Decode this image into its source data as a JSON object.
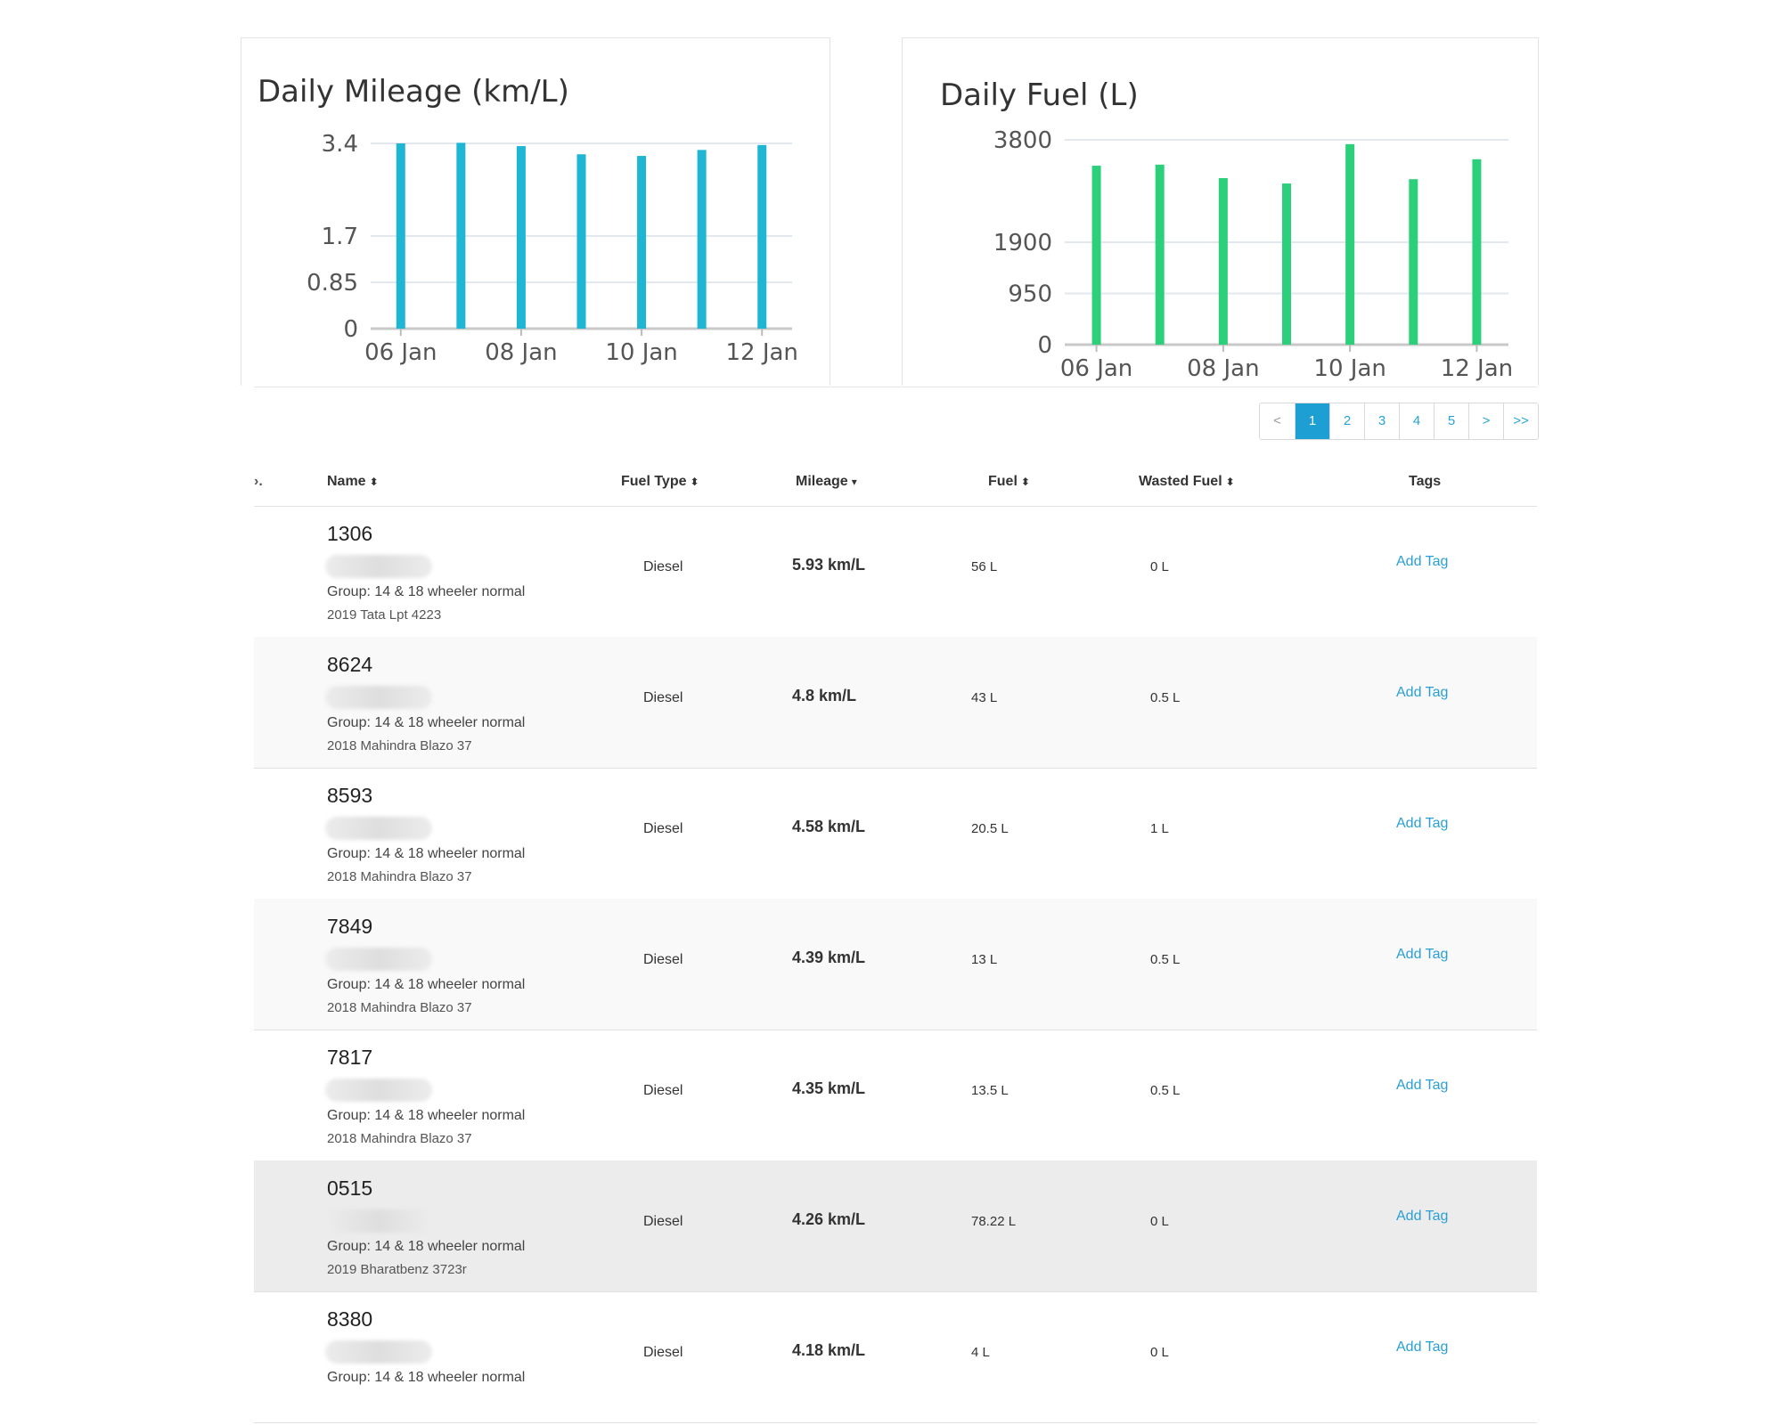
{
  "charts": [
    {
      "title": "Daily Mileage (km/L)",
      "color": "#1fb6d4",
      "chart_data": {
        "type": "bar",
        "title": "Daily Mileage (km/L)",
        "categories": [
          "06 Jan",
          "07 Jan",
          "08 Jan",
          "09 Jan",
          "10 Jan",
          "11 Jan",
          "12 Jan"
        ],
        "values": [
          3.4,
          3.41,
          3.35,
          3.2,
          3.17,
          3.28,
          3.37
        ],
        "y_ticks": [
          0,
          0.85,
          1.7,
          3.4
        ],
        "y_tick_labels": [
          "0",
          "0.85",
          "1.7",
          "3.4"
        ],
        "x_tick_labels": [
          "06 Jan",
          "08 Jan",
          "10 Jan",
          "12 Jan"
        ],
        "x_tick_index": [
          0,
          2,
          4,
          6
        ],
        "ylim": [
          0,
          3.4
        ],
        "grid": true
      }
    },
    {
      "title": "Daily Fuel (L)",
      "color": "#2dd07a",
      "chart_data": {
        "type": "bar",
        "title": "Daily Fuel (L)",
        "categories": [
          "06 Jan",
          "07 Jan",
          "08 Jan",
          "09 Jan",
          "10 Jan",
          "11 Jan",
          "12 Jan"
        ],
        "values": [
          3320,
          3340,
          3090,
          2990,
          3720,
          3070,
          3440
        ],
        "y_ticks": [
          0,
          950,
          1900,
          3800
        ],
        "y_tick_labels": [
          "0",
          "950",
          "1900",
          "3800"
        ],
        "x_tick_labels": [
          "06 Jan",
          "08 Jan",
          "10 Jan",
          "12 Jan"
        ],
        "x_tick_index": [
          0,
          2,
          4,
          6
        ],
        "ylim": [
          0,
          3800
        ],
        "grid": true
      }
    }
  ],
  "pagination": [
    "<",
    "1",
    "2",
    "3",
    "4",
    "5",
    ">",
    ">>"
  ],
  "pagination_active": "1",
  "table": {
    "leading_fragment": "›.",
    "headers": {
      "name": "Name",
      "fuel_type": "Fuel Type",
      "mileage": "Mileage",
      "fuel": "Fuel",
      "wasted_fuel": "Wasted Fuel",
      "tags": "Tags"
    },
    "sort_icons": {
      "both": "⬍",
      "down": "▾"
    },
    "rows": [
      {
        "id": "1306",
        "group": "Group: 14 & 18 wheeler normal",
        "model": "2019 Tata Lpt 4223",
        "fuel_type": "Diesel",
        "mileage": "5.93 km/L",
        "fuel": "56 L",
        "wasted": "0 L",
        "tag": "Add Tag"
      },
      {
        "id": "8624",
        "group": "Group: 14 & 18 wheeler normal",
        "model": "2018 Mahindra Blazo 37",
        "fuel_type": "Diesel",
        "mileage": "4.8 km/L",
        "fuel": "43 L",
        "wasted": "0.5 L",
        "tag": "Add Tag"
      },
      {
        "id": "8593",
        "group": "Group: 14 & 18 wheeler normal",
        "model": "2018 Mahindra Blazo 37",
        "fuel_type": "Diesel",
        "mileage": "4.58 km/L",
        "fuel": "20.5 L",
        "wasted": "1 L",
        "tag": "Add Tag"
      },
      {
        "id": "7849",
        "group": "Group: 14 & 18 wheeler normal",
        "model": "2018 Mahindra Blazo 37",
        "fuel_type": "Diesel",
        "mileage": "4.39 km/L",
        "fuel": "13 L",
        "wasted": "0.5 L",
        "tag": "Add Tag"
      },
      {
        "id": "7817",
        "group": "Group: 14 & 18 wheeler normal",
        "model": "2018 Mahindra Blazo 37",
        "fuel_type": "Diesel",
        "mileage": "4.35 km/L",
        "fuel": "13.5 L",
        "wasted": "0.5 L",
        "tag": "Add Tag"
      },
      {
        "id": "0515",
        "group": "Group: 14 & 18 wheeler normal",
        "model": "2019 Bharatbenz 3723r",
        "fuel_type": "Diesel",
        "mileage": "4.26 km/L",
        "fuel": "78.22 L",
        "wasted": "0 L",
        "tag": "Add Tag"
      },
      {
        "id": "8380",
        "group": "Group: 14 & 18 wheeler normal",
        "model": "",
        "fuel_type": "Diesel",
        "mileage": "4.18 km/L",
        "fuel": "4 L",
        "wasted": "0 L",
        "tag": "Add Tag"
      }
    ]
  }
}
